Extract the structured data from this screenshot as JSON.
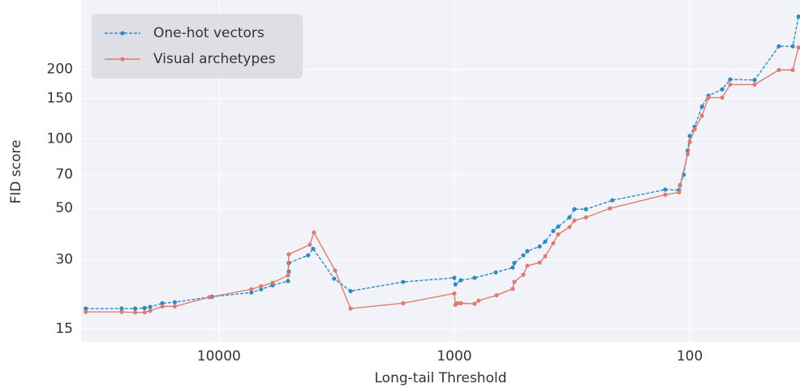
{
  "chart_data": {
    "type": "line",
    "xlabel": "Long-tail Threshold",
    "ylabel": "FID score",
    "xscale": "log",
    "yscale": "log",
    "x_inverted": true,
    "grid": true,
    "legend": "upper left",
    "xlim": [
      38500,
      34
    ],
    "ylim": [
      13.2,
      400
    ],
    "xticks": [
      10000,
      1000,
      100
    ],
    "yticks": [
      15,
      30,
      50,
      70,
      100,
      150,
      200
    ],
    "series": [
      {
        "name": "One-hot vectors",
        "color": "#2e8bc0",
        "style": "dashed",
        "x": [
          36800,
          25900,
          22700,
          20700,
          19600,
          17400,
          15400,
          10700,
          7280,
          6620,
          5920,
          5090,
          5050,
          5050,
          4180,
          3980,
          3240,
          2760,
          1650,
          1000,
          990,
          938,
          820,
          667,
          565,
          556,
          509,
          490,
          434,
          411,
          380,
          362,
          324,
          309,
          276,
          213,
          127,
          111,
          110,
          106,
          102,
          100,
          95.3,
          88.7,
          83.3,
          72.8,
          67.3,
          53,
          41.8,
          36.5,
          34.5
        ],
        "values": [
          18.4,
          18.4,
          18.4,
          18.5,
          18.7,
          19.4,
          19.6,
          20.7,
          21.6,
          22.3,
          23.2,
          24.2,
          26.6,
          29,
          31.3,
          33.4,
          24.8,
          21.9,
          24.0,
          25.0,
          23.4,
          24.4,
          25,
          26.4,
          27.7,
          29,
          31.3,
          32.6,
          34.2,
          35.9,
          39.9,
          41.7,
          45.7,
          49.6,
          49.6,
          54.2,
          60.3,
          60,
          63,
          70,
          89,
          103,
          113,
          138,
          154,
          164,
          181,
          180,
          252,
          252,
          339
        ]
      },
      {
        "name": "Visual archetypes",
        "color": "#e07b72",
        "style": "solid",
        "x": [
          36800,
          25900,
          22700,
          20700,
          19600,
          17400,
          15400,
          11000,
          7280,
          6620,
          5920,
          5090,
          5050,
          4110,
          3950,
          3210,
          2760,
          1650,
          1000,
          990,
          970,
          938,
          820,
          789,
          662,
          565,
          556,
          509,
          490,
          434,
          411,
          380,
          362,
          324,
          309,
          276,
          218,
          127,
          111,
          110,
          102,
          100,
          95.3,
          88.7,
          83.3,
          72.8,
          67.3,
          53,
          41.8,
          36.5,
          34.5
        ],
        "values": [
          17.8,
          17.8,
          17.7,
          17.7,
          18.0,
          18.8,
          18.8,
          20.6,
          22.3,
          23,
          23.8,
          25.6,
          31.6,
          34.8,
          39.3,
          26.9,
          18.4,
          19.4,
          21.4,
          19.1,
          19.4,
          19.4,
          19.3,
          19.9,
          21.0,
          22.4,
          24,
          25.8,
          28.2,
          29.1,
          31,
          35.3,
          38.6,
          41.5,
          44.3,
          45.7,
          50,
          57.3,
          58.7,
          62.7,
          85.9,
          97,
          110,
          126,
          151,
          151,
          172,
          172,
          199,
          199,
          249
        ]
      }
    ]
  }
}
